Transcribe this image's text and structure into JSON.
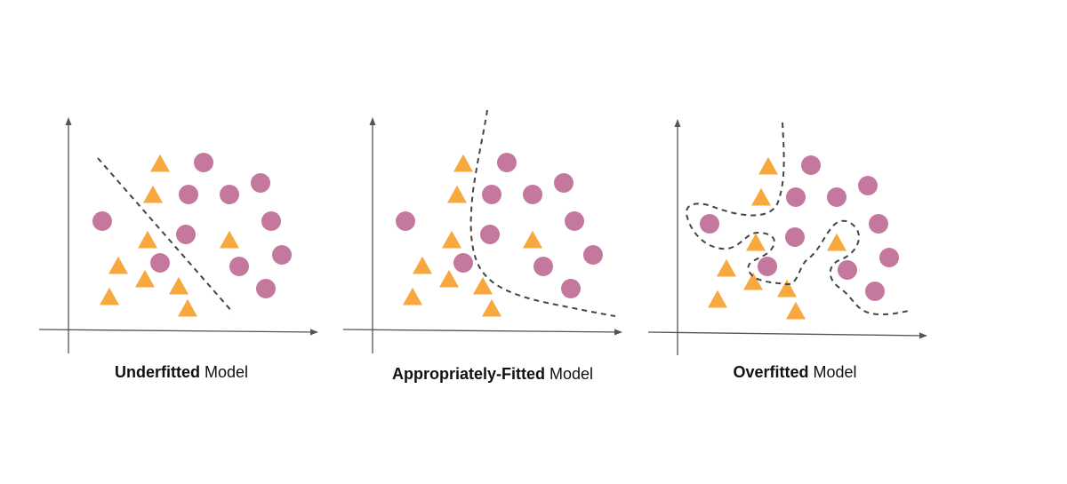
{
  "colors": {
    "circle": "#C5789E",
    "triangle": "#F7A83E",
    "axis": "#555555",
    "boundary": "#444444"
  },
  "panels": [
    {
      "caption_bold": "Underfitted",
      "caption_rest": " Model",
      "boundary": "straight-dashed-line"
    },
    {
      "caption_bold": "Appropriately-Fitted",
      "caption_rest": " Model",
      "boundary": "smooth-dashed-curve"
    },
    {
      "caption_bold": "Overfitted",
      "caption_rest": " Model",
      "boundary": "wiggly-dashed-curve"
    }
  ]
}
